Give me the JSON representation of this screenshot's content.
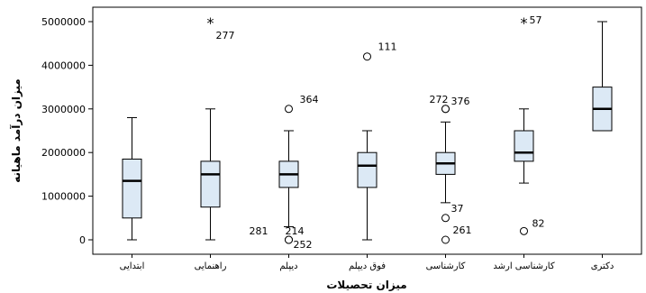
{
  "chart_data": {
    "type": "boxplot",
    "xlabel": "میزان تحصیلات",
    "ylabel": "میزان درآمد ماهیانه",
    "y_ticks": [
      0,
      1000000,
      2000000,
      3000000,
      4000000,
      5000000
    ],
    "y_tick_labels": [
      "0",
      "1000000",
      "2000000",
      "3000000",
      "4000000",
      "5000000"
    ],
    "ylim": [
      -200000,
      5200000
    ],
    "grid": false,
    "colors": {
      "box_fill": "#dce9f5",
      "line": "#000000"
    },
    "categories": [
      "ابتدایی",
      "راهنمایی",
      "دیپلم",
      "فوق دیپلم",
      "کارشناسی",
      "کارشناسی ارشد",
      "دکتری"
    ],
    "boxes": [
      {
        "category": "ابتدایی",
        "min": 0,
        "q1": 500000,
        "median": 1350000,
        "q3": 1850000,
        "max": 2800000
      },
      {
        "category": "راهنمایی",
        "min": 0,
        "q1": 750000,
        "median": 1500000,
        "q3": 1800000,
        "max": 3000000
      },
      {
        "category": "دیپلم",
        "min": 300000,
        "q1": 1200000,
        "median": 1500000,
        "q3": 1800000,
        "max": 2500000
      },
      {
        "category": "فوق دیپلم",
        "min": 0,
        "q1": 1200000,
        "median": 1700000,
        "q3": 2000000,
        "max": 2500000
      },
      {
        "category": "کارشناسی",
        "min": 850000,
        "q1": 1500000,
        "median": 1750000,
        "q3": 2000000,
        "max": 2700000
      },
      {
        "category": "کارشناسی ارشد",
        "min": 1300000,
        "q1": 1800000,
        "median": 2000000,
        "q3": 2500000,
        "max": 3000000
      },
      {
        "category": "دکتری",
        "min": 2500000,
        "q1": 2500000,
        "median": 3000000,
        "q3": 3500000,
        "max": 5000000
      }
    ],
    "outliers": [
      {
        "category_index": 1,
        "value": 5000000,
        "marker": "star",
        "label": "277"
      },
      {
        "category_index": 2,
        "value": 3000000,
        "marker": "circle",
        "label": "364"
      },
      {
        "category_index": 2,
        "value": 0,
        "marker": "circle",
        "label": "281"
      },
      {
        "category_index": 2,
        "value": 0,
        "marker": "circle",
        "label": "214"
      },
      {
        "category_index": 2,
        "value": 0,
        "marker": "circle",
        "label": "252"
      },
      {
        "category_index": 3,
        "value": 4200000,
        "marker": "circle",
        "label": "111"
      },
      {
        "category_index": 4,
        "value": 3000000,
        "marker": "circle",
        "label": "272"
      },
      {
        "category_index": 4,
        "value": 3000000,
        "marker": "circle",
        "label": "376"
      },
      {
        "category_index": 4,
        "value": 500000,
        "marker": "circle",
        "label": "37"
      },
      {
        "category_index": 4,
        "value": 0,
        "marker": "circle",
        "label": "261"
      },
      {
        "category_index": 5,
        "value": 5000000,
        "marker": "star",
        "label": "57"
      },
      {
        "category_index": 5,
        "value": 200000,
        "marker": "circle",
        "label": "82"
      }
    ]
  }
}
